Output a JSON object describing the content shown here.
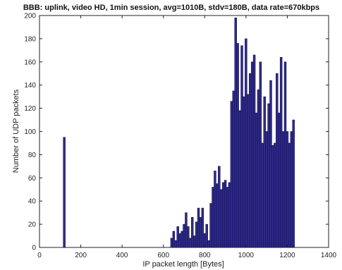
{
  "chart_data": {
    "type": "bar",
    "title": "BBB: uplink, video HD, 1min session, avg=1010B, stdv=180B, data rate=670kbps",
    "xlabel": "IP packet length [Bytes]",
    "ylabel": "Number of UDP packets",
    "xlim": [
      0,
      1400
    ],
    "ylim": [
      0,
      200
    ],
    "xticks": [
      0,
      200,
      400,
      600,
      800,
      1000,
      1200,
      1400
    ],
    "yticks": [
      0,
      20,
      40,
      60,
      80,
      100,
      120,
      140,
      160,
      180,
      200
    ],
    "bin_width": 10,
    "bar_color": "#2e2a8c",
    "bar_edge_color": "#0d0b3a",
    "grid": false,
    "x": [
      120,
      640,
      650,
      660,
      670,
      680,
      690,
      700,
      710,
      720,
      730,
      740,
      750,
      760,
      770,
      780,
      790,
      800,
      810,
      820,
      830,
      840,
      850,
      860,
      870,
      880,
      890,
      900,
      910,
      920,
      930,
      940,
      950,
      960,
      970,
      980,
      990,
      1000,
      1010,
      1020,
      1030,
      1040,
      1050,
      1060,
      1070,
      1080,
      1090,
      1100,
      1110,
      1120,
      1130,
      1140,
      1150,
      1160,
      1170,
      1180,
      1190,
      1200,
      1210,
      1220,
      1230
    ],
    "values": [
      95,
      8,
      14,
      6,
      18,
      12,
      14,
      20,
      30,
      18,
      8,
      26,
      10,
      22,
      34,
      26,
      34,
      12,
      20,
      6,
      38,
      52,
      66,
      55,
      70,
      50,
      56,
      58,
      52,
      56,
      126,
      135,
      198,
      176,
      118,
      174,
      130,
      180,
      132,
      150,
      160,
      166,
      116,
      136,
      160,
      90,
      130,
      100,
      124,
      144,
      88,
      90,
      150,
      116,
      164,
      100,
      160,
      100,
      90,
      100,
      110
    ]
  }
}
